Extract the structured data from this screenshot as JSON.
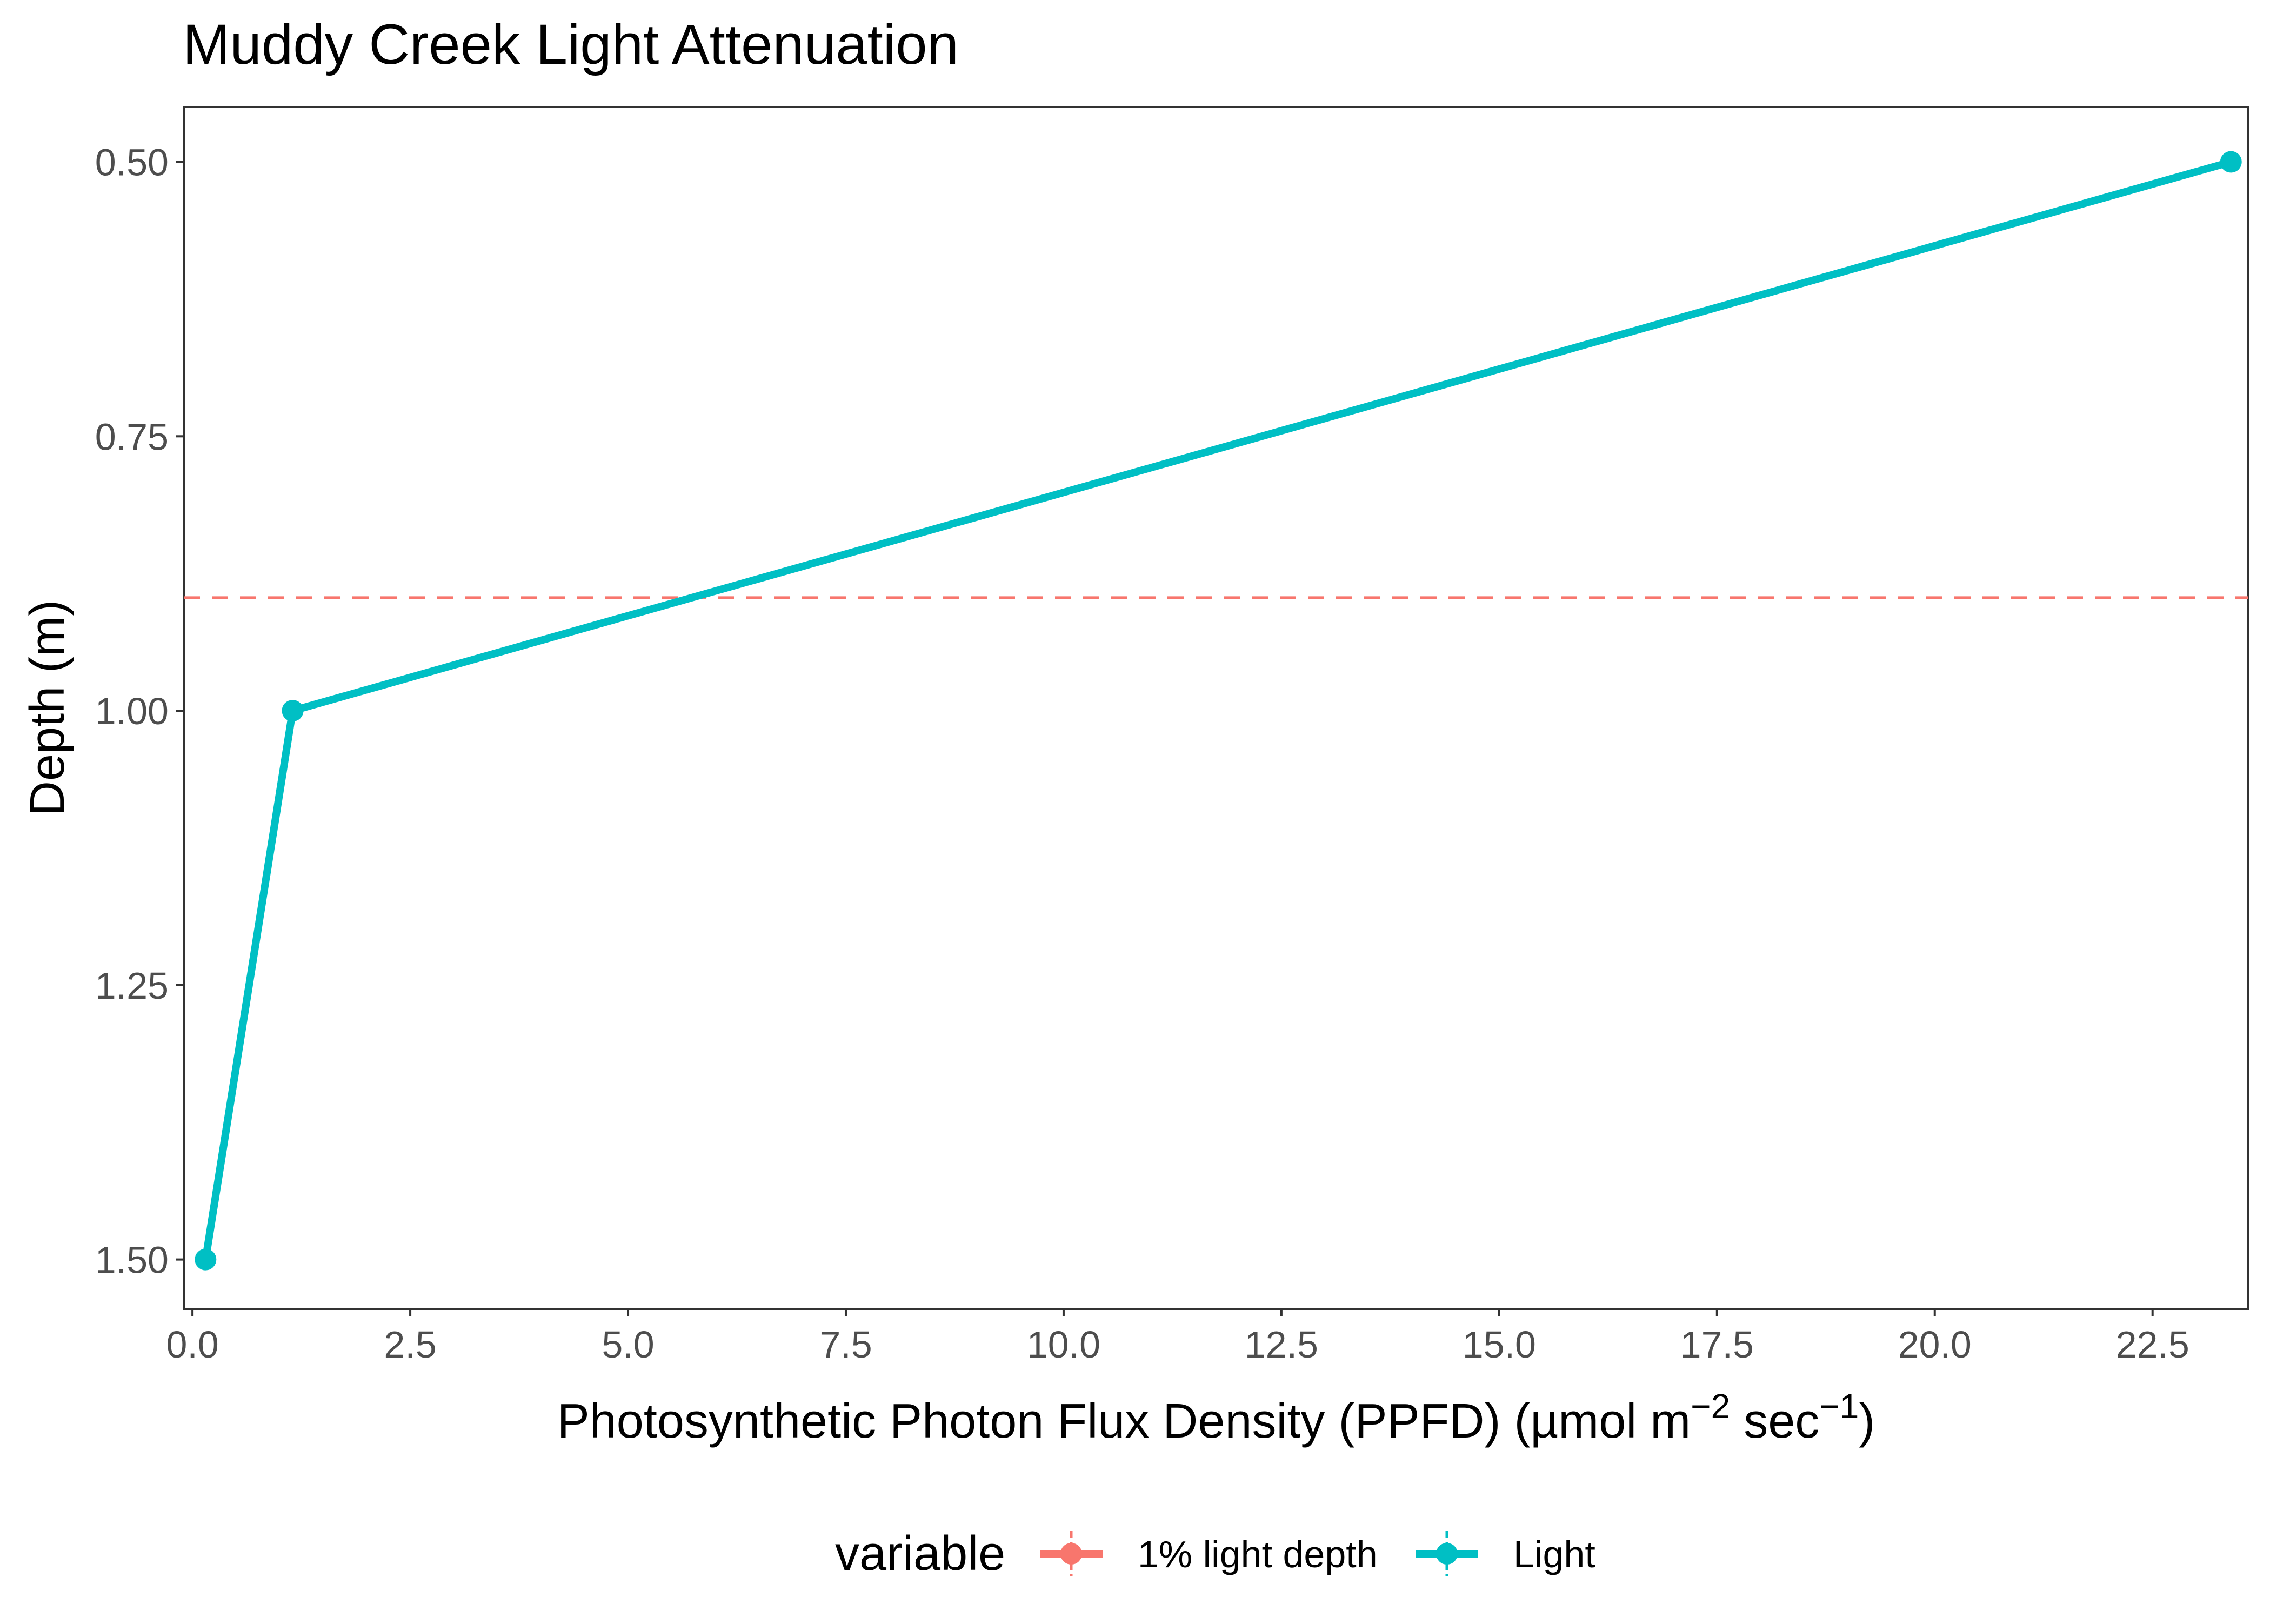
{
  "chart_data": {
    "type": "line",
    "title": "Muddy Creek Light Attenuation",
    "xlabel": {
      "main": "Photosynthetic Photon Flux Density (PPFD) (µmol m",
      "sup1": "−2",
      "mid": " sec",
      "sup2": "−1",
      "end": ")"
    },
    "ylabel": "Depth (m)",
    "x_ticks": [
      "0.0",
      "2.5",
      "5.0",
      "7.5",
      "10.0",
      "12.5",
      "15.0",
      "17.5",
      "20.0",
      "22.5"
    ],
    "y_ticks": [
      "0.50",
      "0.75",
      "1.00",
      "1.25",
      "1.50"
    ],
    "xlim": [
      -0.1,
      23.6
    ],
    "ylim": [
      0.45,
      1.545
    ],
    "y_reversed": true,
    "grid": false,
    "legend": {
      "title": "variable",
      "position": "bottom",
      "entries": [
        {
          "label": "1% light depth",
          "color": "#F8766D"
        },
        {
          "label": "Light",
          "color": "#00BFC4"
        }
      ]
    },
    "series": [
      {
        "name": "Light",
        "color": "#00BFC4",
        "points": [
          {
            "x": 23.4,
            "y": 0.5
          },
          {
            "x": 1.15,
            "y": 1.0
          },
          {
            "x": 0.15,
            "y": 1.5
          }
        ]
      },
      {
        "name": "1% light depth",
        "color": "#F8766D",
        "style": "dashed",
        "hline_y": 0.897
      }
    ]
  }
}
